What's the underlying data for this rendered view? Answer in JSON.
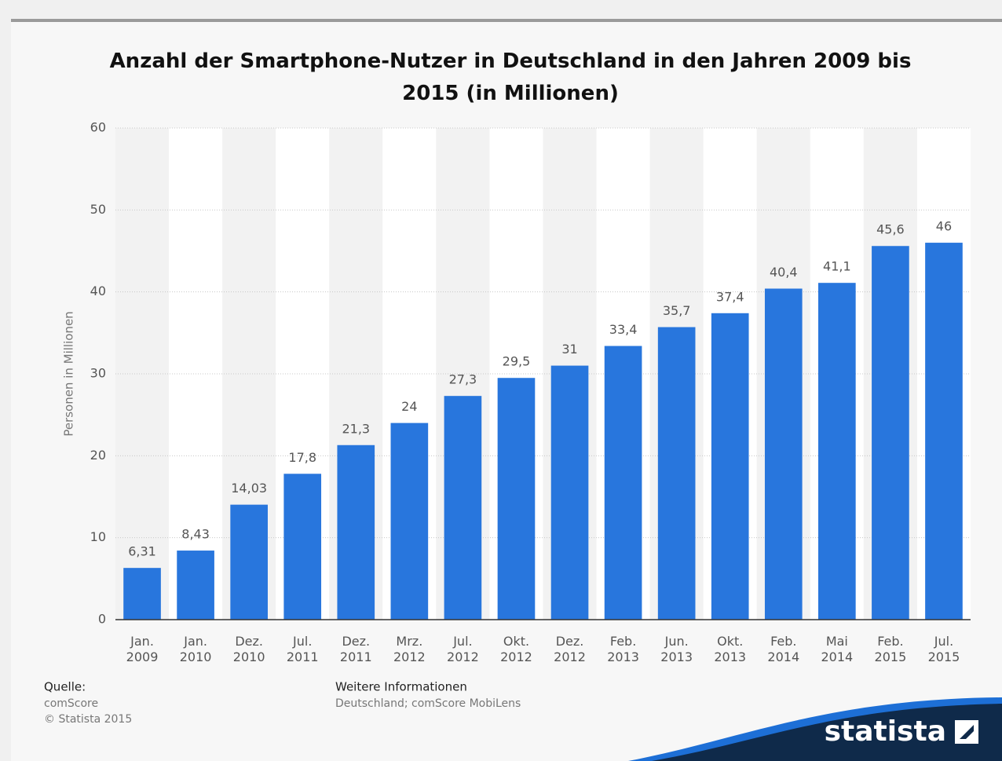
{
  "chart_data": {
    "type": "bar",
    "title": "Anzahl der Smartphone-Nutzer in Deutschland in den Jahren 2009 bis 2015 (in Millionen)",
    "y_label": "Personen in Millionen",
    "categories": [
      "Jan. 2009",
      "Jan. 2010",
      "Dez. 2010",
      "Jul. 2011",
      "Dez. 2011",
      "Mrz. 2012",
      "Jul. 2012",
      "Okt. 2012",
      "Dez. 2012",
      "Feb. 2013",
      "Jun. 2013",
      "Okt. 2013",
      "Feb. 2014",
      "Mai 2014",
      "Feb. 2015",
      "Jul. 2015"
    ],
    "values": [
      6.31,
      8.43,
      14.03,
      17.8,
      21.3,
      24,
      27.3,
      29.5,
      31,
      33.4,
      35.7,
      37.4,
      40.4,
      41.1,
      45.6,
      46
    ],
    "value_labels": [
      "6,31",
      "8,43",
      "14,03",
      "17,8",
      "21,3",
      "24",
      "27,3",
      "29,5",
      "31",
      "33,4",
      "35,7",
      "37,4",
      "40,4",
      "41,1",
      "45,6",
      "46"
    ],
    "color": "#2876dd",
    "ylim": [
      0,
      60
    ],
    "yticks": [
      0,
      10,
      20,
      30,
      40,
      50,
      60
    ],
    "grid": true
  },
  "footer": {
    "source_title": "Quelle:",
    "source": "comScore",
    "copyright": "© Statista 2015",
    "info_title": "Weitere Informationen",
    "info": "Deutschland; comScore MobiLens",
    "logo": "statista"
  }
}
